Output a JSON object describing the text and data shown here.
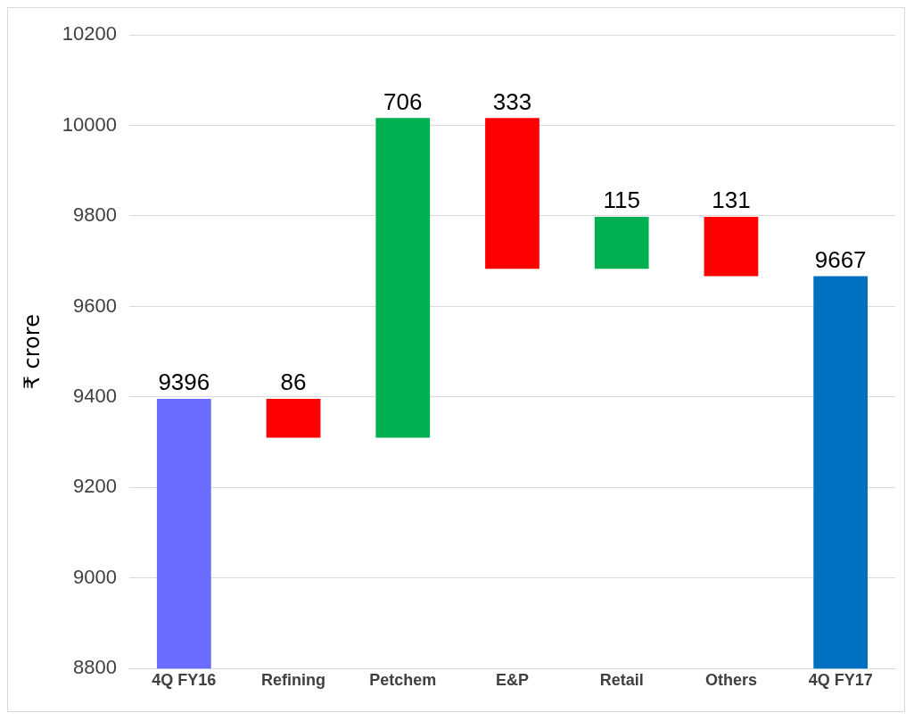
{
  "chart_data": {
    "type": "bar",
    "ylabel": "₹ crore",
    "categories": [
      "4Q FY16",
      "Refining",
      "Petchem",
      "E&P",
      "Retail",
      "Others",
      "4Q FY17"
    ],
    "base": [
      8800,
      9396,
      9310,
      10016,
      9683,
      9798,
      8800
    ],
    "values": [
      596,
      -86,
      706,
      -333,
      115,
      -131,
      867
    ],
    "value_labels": [
      "9396",
      "86",
      "706",
      "333",
      "115",
      "131",
      "9667"
    ],
    "colors": [
      "#6b6bff",
      "#ff0000",
      "#00b050",
      "#ff0000",
      "#00b050",
      "#ff0000",
      "#0070c0"
    ],
    "ylim": [
      8800,
      10200
    ],
    "yticks": [
      8800,
      9000,
      9200,
      9400,
      9600,
      9800,
      10000,
      10200
    ],
    "grid": "y",
    "legend": false
  }
}
